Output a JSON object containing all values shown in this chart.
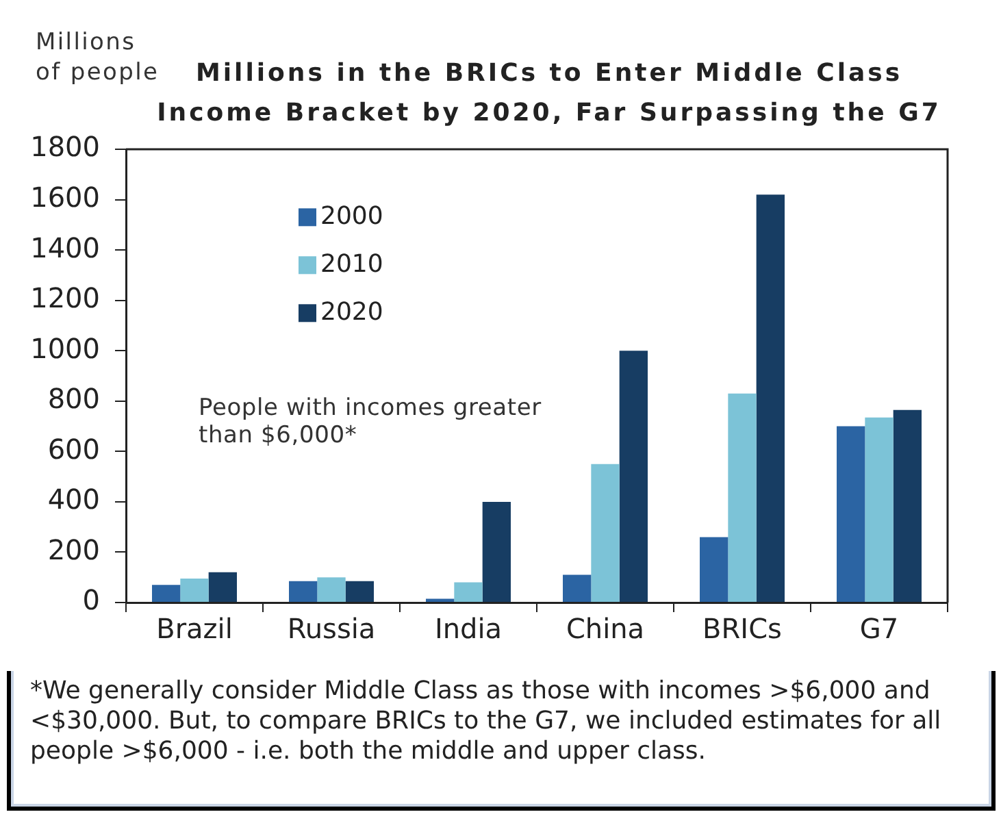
{
  "chart_data": {
    "type": "bar",
    "title": "Millions in the BRICs to Enter Middle Class Income Bracket by 2020, Far Surpassing the G7",
    "ylabel": "Millions of people",
    "categories": [
      "Brazil",
      "Russia",
      "India",
      "China",
      "BRICs",
      "G7"
    ],
    "series": [
      {
        "name": "2000",
        "color": "#2b64a3",
        "values": [
          70,
          85,
          15,
          110,
          260,
          700
        ]
      },
      {
        "name": "2010",
        "color": "#7cc3d7",
        "values": [
          95,
          100,
          80,
          550,
          830,
          735
        ]
      },
      {
        "name": "2020",
        "color": "#173d63",
        "values": [
          120,
          85,
          400,
          1000,
          1620,
          765
        ]
      }
    ],
    "ylim": [
      0,
      1800
    ],
    "yticks": [
      0,
      200,
      400,
      600,
      800,
      1000,
      1200,
      1400,
      1600,
      1800
    ],
    "legend": "top left",
    "annotations": [
      "People with incomes greater than $6,000*",
      "*We generally consider Middle Class as those with incomes >$6,000 and <$30,000. But, to compare BRICs to the G7, we included estimates for all people >$6,000 - i.e. both the middle and upper class."
    ]
  }
}
